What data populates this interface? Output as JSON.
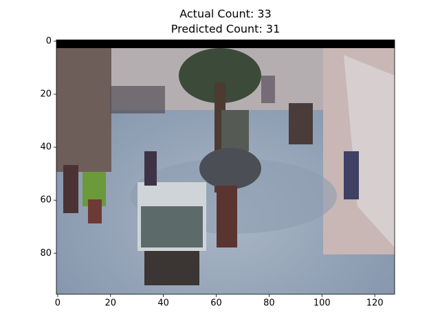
{
  "chart_data": {
    "type": "image",
    "title": [
      "Actual Count: 33",
      "Predicted Count: 31"
    ],
    "xlim": [
      -0.5,
      127.5
    ],
    "ylim": [
      95.5,
      -0.5
    ],
    "xticks": [
      0,
      20,
      40,
      60,
      80,
      100,
      120
    ],
    "yticks": [
      0,
      20,
      40,
      60,
      80
    ]
  }
}
